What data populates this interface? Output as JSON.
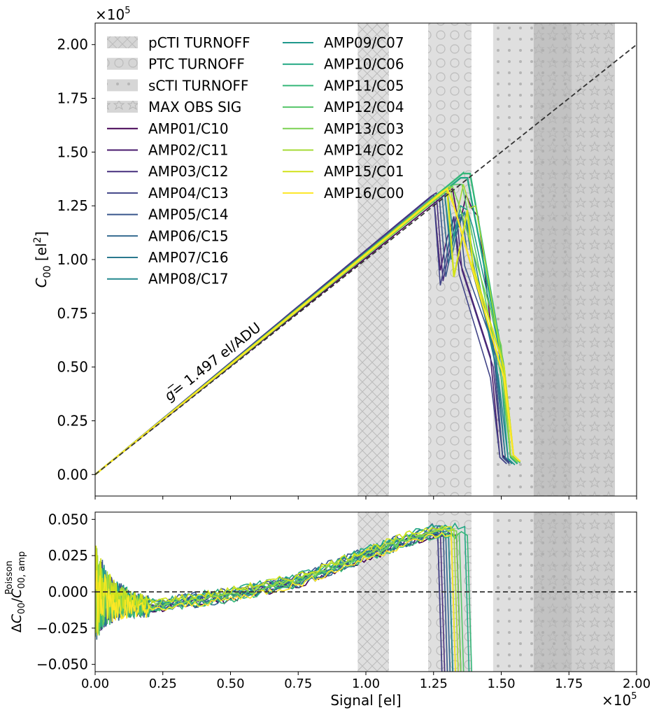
{
  "chart_data": [
    {
      "type": "line",
      "panel": "top",
      "title": "",
      "xlabel": "",
      "ylabel": "C_00 [el^2]",
      "ylabel_parts": {
        "sym": "C",
        "sub": "00",
        "unit_pre": " [el",
        "sup": "2",
        "unit_post": "]"
      },
      "x_offset_text": "×10",
      "x_offset_exp": "5",
      "y_offset_text": "×10",
      "y_offset_exp": "5",
      "xlim": [
        0,
        200000
      ],
      "ylim": [
        -10000,
        210000
      ],
      "xticks": [
        0,
        25000,
        50000,
        75000,
        100000,
        125000,
        150000,
        175000,
        200000
      ],
      "yticks": [
        0,
        25000,
        50000,
        75000,
        100000,
        125000,
        150000,
        175000,
        200000
      ],
      "ytick_labels": [
        "0.00",
        "0.25",
        "0.50",
        "0.75",
        "1.00",
        "1.25",
        "1.50",
        "1.75",
        "2.00"
      ],
      "annotation": {
        "text": "= 1.497 el/ADU",
        "symbol": "g",
        "x": 25000,
        "y": 35000
      },
      "reference_line": {
        "style": "dashed",
        "color": "#333333",
        "x": [
          0,
          200000
        ],
        "y": [
          0,
          200000
        ]
      },
      "shaded_regions": [
        {
          "name": "pCTI TURNOFF",
          "x0": 97000,
          "x1": 108500,
          "pattern": "cross"
        },
        {
          "name": "PTC TURNOFF",
          "x0": 123000,
          "x1": 139000,
          "pattern": "circles"
        },
        {
          "name": "sCTI TURNOFF",
          "x0": 147000,
          "x1": 176000,
          "pattern": "dots"
        },
        {
          "name": "MAX OBS SIG",
          "x0": 162000,
          "x1": 192000,
          "pattern": "stars"
        }
      ],
      "series": [
        {
          "name": "AMP01/C10",
          "color": "#440154",
          "peak_x": 132000,
          "peak_y": 133000,
          "min_y": 115000,
          "end_x": 153000,
          "end_y": 6000
        },
        {
          "name": "AMP02/C11",
          "color": "#481a6c",
          "peak_x": 125000,
          "peak_y": 130000,
          "min_y": 95000,
          "end_x": 152000,
          "end_y": 5000
        },
        {
          "name": "AMP03/C12",
          "color": "#472f7d",
          "peak_x": 126000,
          "peak_y": 131000,
          "min_y": 90000,
          "end_x": 153000,
          "end_y": 5500
        },
        {
          "name": "AMP04/C13",
          "color": "#414487",
          "peak_x": 125000,
          "peak_y": 130000,
          "min_y": 88000,
          "end_x": 152000,
          "end_y": 5000
        },
        {
          "name": "AMP05/C14",
          "color": "#39568c",
          "peak_x": 127000,
          "peak_y": 131000,
          "min_y": 92000,
          "end_x": 153000,
          "end_y": 5000
        },
        {
          "name": "AMP06/C15",
          "color": "#31688e",
          "peak_x": 128000,
          "peak_y": 131000,
          "min_y": 98000,
          "end_x": 154000,
          "end_y": 5000
        },
        {
          "name": "AMP07/C16",
          "color": "#2a788e",
          "peak_x": 129000,
          "peak_y": 132000,
          "min_y": 100000,
          "end_x": 154000,
          "end_y": 5000
        },
        {
          "name": "AMP08/C17",
          "color": "#23888e",
          "peak_x": 129000,
          "peak_y": 132000,
          "min_y": 105000,
          "end_x": 155000,
          "end_y": 4500
        },
        {
          "name": "AMP09/C07",
          "color": "#1f988b",
          "peak_x": 130000,
          "peak_y": 133000,
          "min_y": 110000,
          "end_x": 155000,
          "end_y": 4500
        },
        {
          "name": "AMP10/C06",
          "color": "#22a884",
          "peak_x": 135000,
          "peak_y": 138000,
          "min_y": 138000,
          "end_x": 156000,
          "end_y": 5000
        },
        {
          "name": "AMP11/C05",
          "color": "#35b779",
          "peak_x": 136000,
          "peak_y": 140000,
          "min_y": 140000,
          "end_x": 157000,
          "end_y": 5500
        },
        {
          "name": "AMP12/C04",
          "color": "#54c568",
          "peak_x": 133000,
          "peak_y": 135000,
          "min_y": 135000,
          "end_x": 156000,
          "end_y": 5500
        },
        {
          "name": "AMP13/C03",
          "color": "#7ad151",
          "peak_x": 132000,
          "peak_y": 134000,
          "min_y": 125000,
          "end_x": 156000,
          "end_y": 6000
        },
        {
          "name": "AMP14/C02",
          "color": "#a5db36",
          "peak_x": 131000,
          "peak_y": 134000,
          "min_y": 120000,
          "end_x": 156000,
          "end_y": 6000
        },
        {
          "name": "AMP15/C01",
          "color": "#d2e21b",
          "peak_x": 130000,
          "peak_y": 133000,
          "min_y": 92000,
          "end_x": 157000,
          "end_y": 6000
        },
        {
          "name": "AMP16/C00",
          "color": "#fde725",
          "peak_x": 130000,
          "peak_y": 133000,
          "min_y": 125000,
          "end_x": 157000,
          "end_y": 6000
        }
      ],
      "legend": "upper-left, 2 columns"
    },
    {
      "type": "line",
      "panel": "bottom",
      "xlabel": "Signal [el]",
      "ylabel": "ΔC_00/C_00,amp^Poisson",
      "ylabel_parts": {
        "pre": "Δ",
        "sym": "C",
        "sub": "00",
        "slash": "/",
        "sym2": "C",
        "sub2": "00, amp",
        "sup2": "Poisson"
      },
      "x_offset_text": "×10",
      "x_offset_exp": "5",
      "xlim": [
        0,
        200000
      ],
      "ylim": [
        -0.055,
        0.055
      ],
      "xticks": [
        0,
        25000,
        50000,
        75000,
        100000,
        125000,
        150000,
        175000,
        200000
      ],
      "xtick_labels": [
        "0.00",
        "0.25",
        "0.50",
        "0.75",
        "1.00",
        "1.25",
        "1.50",
        "1.75",
        "2.00"
      ],
      "yticks": [
        -0.05,
        -0.025,
        0,
        0.025,
        0.05
      ],
      "ytick_labels": [
        "−0.050",
        "−0.025",
        "0.000",
        "0.025",
        "0.050"
      ],
      "reference_line": {
        "style": "dashed",
        "color": "#333333",
        "y": 0
      },
      "residual_profile": {
        "x": [
          0,
          5000,
          20000,
          50000,
          75000,
          100000,
          115000,
          125000
        ],
        "y": [
          0,
          -0.005,
          -0.01,
          -0.002,
          0.008,
          0.026,
          0.036,
          0.042
        ]
      }
    }
  ],
  "colors": {
    "shade": "#bdbdbd",
    "shade_dark": "#8c8c8c",
    "axis": "#000000",
    "dash": "#333333"
  }
}
